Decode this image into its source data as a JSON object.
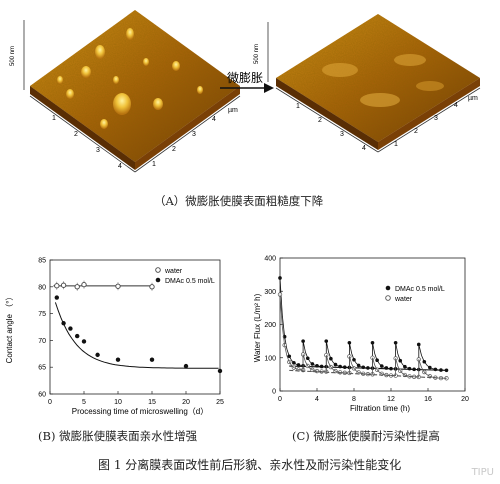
{
  "afm": {
    "left": {
      "z_label": "500 nm",
      "axis_unit": "µm",
      "x_ticks": [
        "1",
        "2",
        "3",
        "4"
      ],
      "y_ticks": [
        "1",
        "2",
        "3",
        "4"
      ]
    },
    "right": {
      "z_label": "500 nm",
      "axis_unit": "µm",
      "x_ticks": [
        "1",
        "2",
        "3",
        "4"
      ],
      "y_ticks": [
        "1",
        "2",
        "3",
        "4"
      ]
    },
    "arrow_label": "微膨胀",
    "caption": "（A）微膨胀使膜表面粗糙度下降"
  },
  "chart_data": [
    {
      "type": "scatter",
      "xlabel": "Processing time of microswelling（d）",
      "ylabel": "Contact angle （°）",
      "xlim": [
        0,
        25
      ],
      "ylim": [
        60,
        85
      ],
      "x_ticks": [
        "0",
        "5",
        "10",
        "15",
        "20",
        "25"
      ],
      "y_ticks": [
        "60",
        "65",
        "70",
        "75",
        "80",
        "85"
      ],
      "legend_position": "top-right",
      "series": [
        {
          "name": "water",
          "marker": "open-circle",
          "x": [
            1,
            2,
            4,
            5,
            10,
            15
          ],
          "y": [
            80.2,
            80.3,
            80.0,
            80.4,
            80.1,
            80.0
          ],
          "fit": "flat",
          "color": "#444444"
        },
        {
          "name": "DMAc 0.5 mol/L",
          "marker": "filled-circle",
          "x": [
            1,
            2,
            3,
            4,
            5,
            7,
            10,
            15,
            20,
            25
          ],
          "y": [
            78,
            73.2,
            72.2,
            70.8,
            69.8,
            67.3,
            66.4,
            66.4,
            65.2,
            64.3
          ],
          "fit": "exponential",
          "color": "#111111"
        }
      ]
    },
    {
      "type": "line",
      "xlabel": "Filtration time (h)",
      "ylabel": "Water Flux (L/m² h)",
      "xlim": [
        0,
        20
      ],
      "ylim": [
        0,
        400
      ],
      "x_ticks": [
        "0",
        "4",
        "8",
        "12",
        "16",
        "20"
      ],
      "y_ticks": [
        "0",
        "100",
        "200",
        "300",
        "400"
      ],
      "legend_position": "top-right",
      "cycle_starts_h": [
        0,
        2.5,
        5,
        7.5,
        10,
        12.5,
        15
      ],
      "series": [
        {
          "name": "DMAc 0.5 mol/L",
          "marker": "filled-circle",
          "peaks": [
            340,
            150,
            150,
            145,
            145,
            145,
            140
          ],
          "trough_start": 75,
          "trough_end": 62,
          "color": "#111111"
        },
        {
          "name": "water",
          "marker": "open-circle",
          "peaks": [
            290,
            110,
            108,
            104,
            100,
            98,
            95
          ],
          "trough_start": 62,
          "trough_end": 38,
          "color": "#555555"
        }
      ]
    }
  ],
  "captions": {
    "b": "(B) 微膨胀使膜表面亲水性增强",
    "c": "(C) 微膨胀使膜耐污染性提高",
    "figure": "图 1  分离膜表面改性前后形貌、亲水性及耐污染性能变化"
  },
  "watermark": "TIPU"
}
